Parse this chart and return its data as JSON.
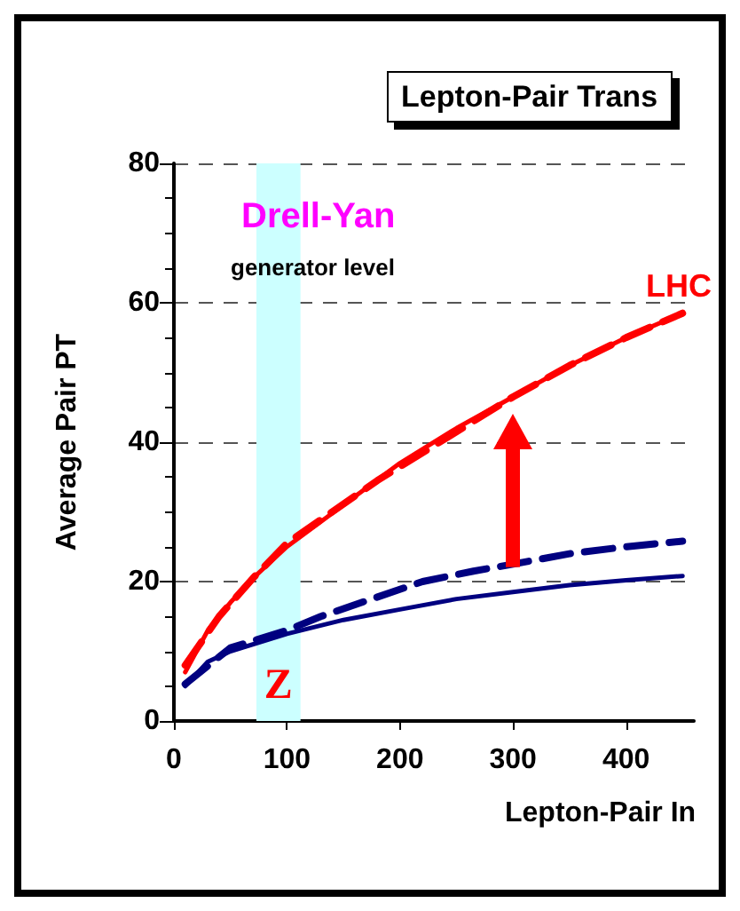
{
  "chart_data": {
    "type": "line",
    "title": "Lepton-Pair Trans",
    "xlabel": "Lepton-Pair In",
    "ylabel": "Average Pair PT",
    "xlim": [
      0,
      460
    ],
    "xticks": [
      0,
      100,
      200,
      300,
      400
    ],
    "ylim": [
      0,
      80
    ],
    "yticks": [
      0,
      20,
      40,
      60,
      80
    ],
    "grid": "y",
    "marker": "none",
    "series": [
      {
        "color": "#ff0000",
        "line_style": "solid",
        "x": [
          10,
          30,
          50,
          70,
          100,
          150,
          200,
          250,
          300,
          350,
          400,
          450
        ],
        "values": [
          7,
          13,
          17,
          20.5,
          25,
          31,
          37,
          42,
          46.5,
          51,
          55,
          58.5
        ]
      },
      {
        "color": "#ff0000",
        "line_style": "dashed",
        "x": [
          10,
          40,
          70,
          100,
          140,
          180,
          220,
          260,
          300,
          350,
          400,
          450
        ],
        "values": [
          8,
          15,
          20.5,
          25.5,
          30,
          34.5,
          38.5,
          42.5,
          46.5,
          51,
          55,
          58.5
        ]
      },
      {
        "color": "#000080",
        "line_style": "solid",
        "x": [
          10,
          30,
          50,
          100,
          150,
          200,
          250,
          300,
          350,
          400,
          450
        ],
        "values": [
          5,
          8.5,
          10,
          12.5,
          14.5,
          16,
          17.5,
          18.5,
          19.5,
          20.2,
          20.8
        ]
      },
      {
        "color": "#000080",
        "line_style": "dashed",
        "x": [
          10,
          50,
          100,
          130,
          175,
          220,
          265,
          300,
          350,
          400,
          450
        ],
        "values": [
          5.3,
          10.5,
          13,
          15,
          17.5,
          20,
          21.5,
          22.5,
          24,
          25,
          25.8
        ]
      }
    ],
    "bands": [
      {
        "axis": "x",
        "from": 73,
        "to": 112,
        "label": "Z",
        "color": "#ccffff"
      }
    ],
    "annotations": [
      "Drell-Yan",
      "generator level",
      "LHC"
    ]
  }
}
